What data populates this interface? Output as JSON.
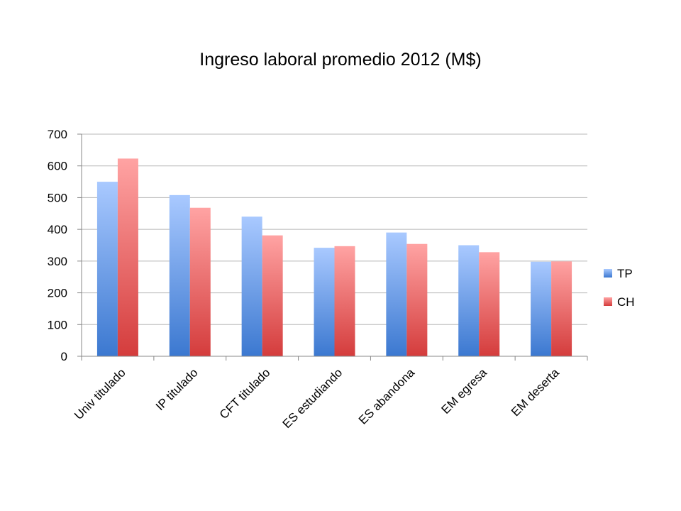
{
  "chart_data": {
    "type": "bar",
    "title": "Ingreso laboral promedio 2012 (M$)",
    "xlabel": "",
    "ylabel": "",
    "categories": [
      "Univ titulado",
      "IP titulado",
      "CFT titulado",
      "ES estudiando",
      "ES abandona",
      "EM egresa",
      "EM deserta"
    ],
    "series": [
      {
        "name": "TP",
        "values": [
          550,
          508,
          440,
          342,
          390,
          350,
          298
        ],
        "color": "#4a86d8"
      },
      {
        "name": "CH",
        "values": [
          623,
          468,
          381,
          347,
          354,
          328,
          299
        ],
        "color": "#e05555"
      }
    ],
    "ylim": [
      0,
      700
    ],
    "yticks": [
      0,
      100,
      200,
      300,
      400,
      500,
      600,
      700
    ],
    "grid": true,
    "legend": "right"
  }
}
